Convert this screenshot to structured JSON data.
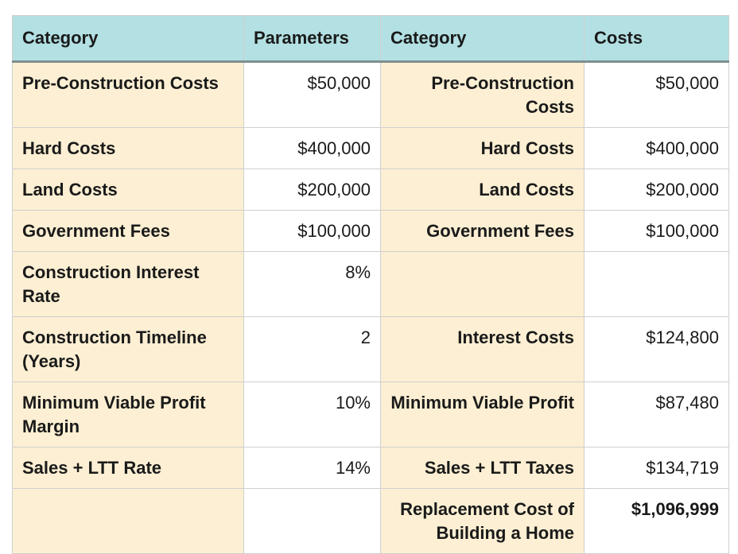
{
  "headers": {
    "col1": "Category",
    "col2": "Parameters",
    "col3": "Category",
    "col4": "Costs"
  },
  "rows": [
    {
      "category": "Pre-Construction Costs",
      "parameter": "$50,000",
      "cost_category": "Pre-Construction Costs",
      "cost": "$50,000"
    },
    {
      "category": "Hard Costs",
      "parameter": "$400,000",
      "cost_category": "Hard Costs",
      "cost": "$400,000"
    },
    {
      "category": "Land Costs",
      "parameter": "$200,000",
      "cost_category": "Land Costs",
      "cost": "$200,000"
    },
    {
      "category": "Government Fees",
      "parameter": "$100,000",
      "cost_category": "Government Fees",
      "cost": "$100,000"
    },
    {
      "category": "Construction Interest Rate",
      "parameter": "8%",
      "cost_category": "",
      "cost": ""
    },
    {
      "category": "Construction Timeline (Years)",
      "parameter": "2",
      "cost_category": "Interest Costs",
      "cost": "$124,800"
    },
    {
      "category": "Minimum Viable Profit Margin",
      "parameter": "10%",
      "cost_category": "Minimum Viable Profit",
      "cost": "$87,480"
    },
    {
      "category": "Sales + LTT Rate",
      "parameter": "14%",
      "cost_category": "Sales + LTT Taxes",
      "cost": "$134,719"
    },
    {
      "category": "",
      "parameter": "",
      "cost_category": "Replacement Cost of Building a Home",
      "cost": "$1,096,999"
    }
  ],
  "colors": {
    "header_bg": "#b3e0e3",
    "category_bg": "#fcefd3"
  }
}
